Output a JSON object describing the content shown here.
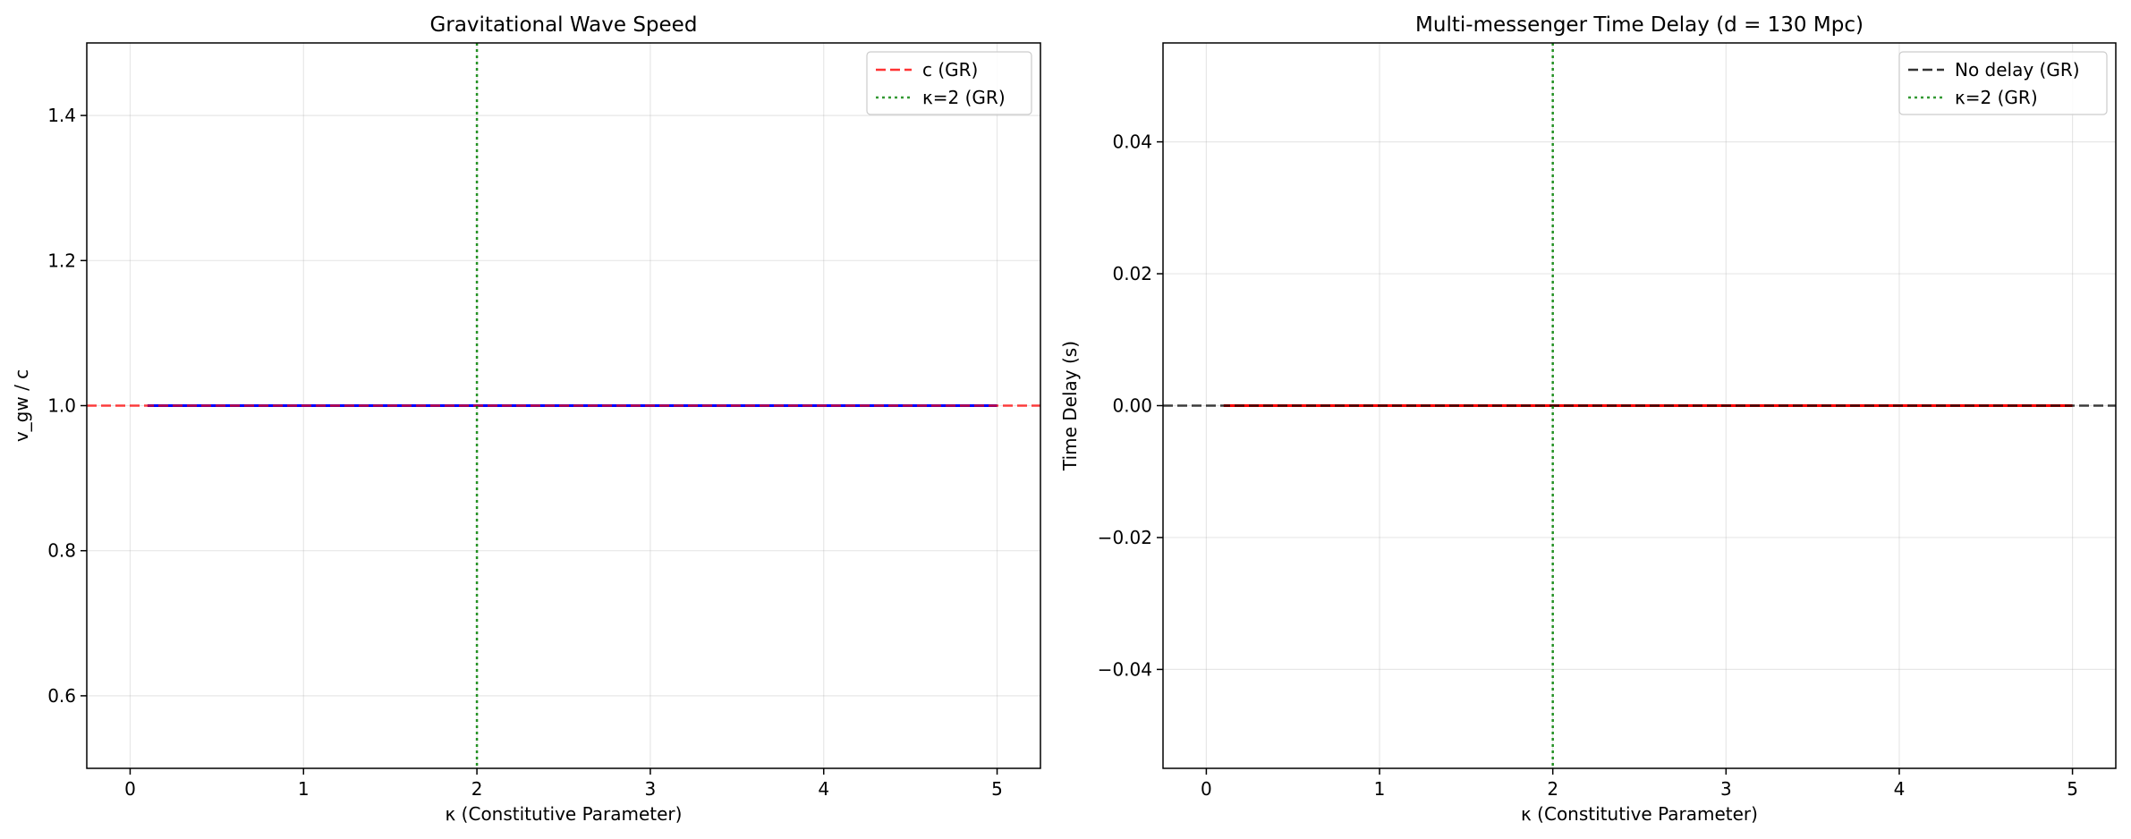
{
  "chart_data": [
    {
      "type": "line",
      "title": "Gravitational Wave Speed",
      "xlabel": "κ (Constitutive Parameter)",
      "ylabel": "v_gw / c",
      "xlim": [
        -0.25,
        5.25
      ],
      "ylim": [
        0.5,
        1.5
      ],
      "xticks": [
        0,
        1,
        2,
        3,
        4,
        5
      ],
      "yticks": [
        0.6,
        0.8,
        1.0,
        1.2,
        1.4
      ],
      "ytick_labels": [
        "0.6",
        "0.8",
        "1.0",
        "1.2",
        "1.4"
      ],
      "grid": true,
      "legend_position": "top-right",
      "series": [
        {
          "x": [
            0.1,
            5.0
          ],
          "y": [
            1.0,
            1.0
          ],
          "color": "#0000ff",
          "style": "solid"
        }
      ],
      "reference_lines": [
        {
          "name": "c (GR)",
          "orientation": "horizontal",
          "value": 1.0,
          "color": "#ff0000",
          "style": "dashed"
        },
        {
          "name": "κ=2 (GR)",
          "orientation": "vertical",
          "value": 2,
          "color": "#008000",
          "style": "dotted"
        }
      ]
    },
    {
      "type": "line",
      "title": "Multi-messenger Time Delay (d = 130 Mpc)",
      "xlabel": "κ (Constitutive Parameter)",
      "ylabel": "Time Delay (s)",
      "xlim": [
        -0.25,
        5.25
      ],
      "ylim": [
        -0.055,
        0.055
      ],
      "xticks": [
        0,
        1,
        2,
        3,
        4,
        5
      ],
      "yticks": [
        -0.04,
        -0.02,
        0.0,
        0.02,
        0.04
      ],
      "ytick_labels": [
        "−0.04",
        "−0.02",
        "0.00",
        "0.02",
        "0.04"
      ],
      "grid": true,
      "legend_position": "top-right",
      "series": [
        {
          "x": [
            0.1,
            5.0
          ],
          "y": [
            0.0,
            0.0
          ],
          "color": "#ff0000",
          "style": "solid"
        }
      ],
      "reference_lines": [
        {
          "name": "No delay (GR)",
          "orientation": "horizontal",
          "value": 0.0,
          "color": "#000000",
          "style": "dashed"
        },
        {
          "name": "κ=2 (GR)",
          "orientation": "vertical",
          "value": 2,
          "color": "#008000",
          "style": "dotted"
        }
      ]
    }
  ]
}
